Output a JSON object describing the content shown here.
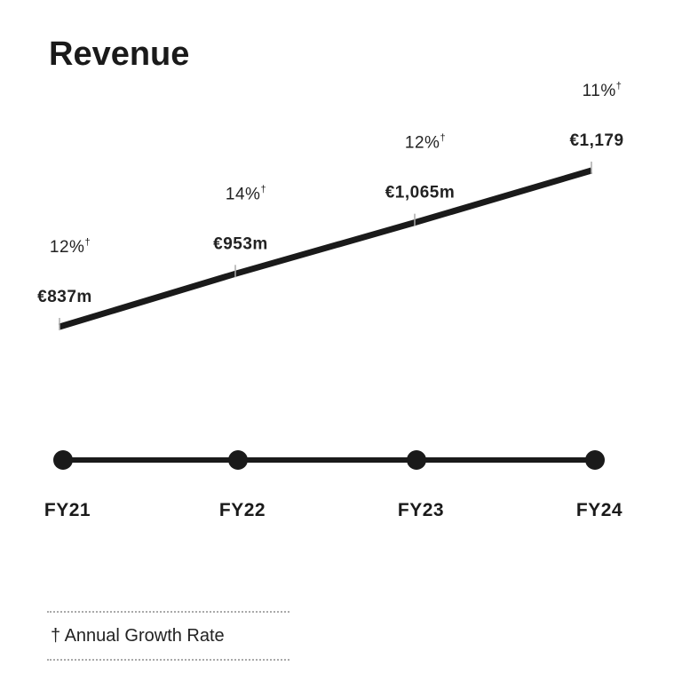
{
  "title": "Revenue",
  "chart_data": {
    "type": "line",
    "title": "Revenue",
    "categories": [
      "FY21",
      "FY22",
      "FY23",
      "FY24"
    ],
    "values": [
      837,
      953,
      1065,
      1179
    ],
    "value_labels": [
      "€837m",
      "€953m",
      "€1,065m",
      "€1,179"
    ],
    "growth_labels": [
      "12%",
      "14%",
      "12%",
      "11%"
    ],
    "growth_marker": "†",
    "unit": "€m",
    "xlabel": "",
    "ylabel": "",
    "grid": false,
    "line_color": "#1a1a1a"
  },
  "legend": {
    "text": "† Annual Growth Rate"
  }
}
